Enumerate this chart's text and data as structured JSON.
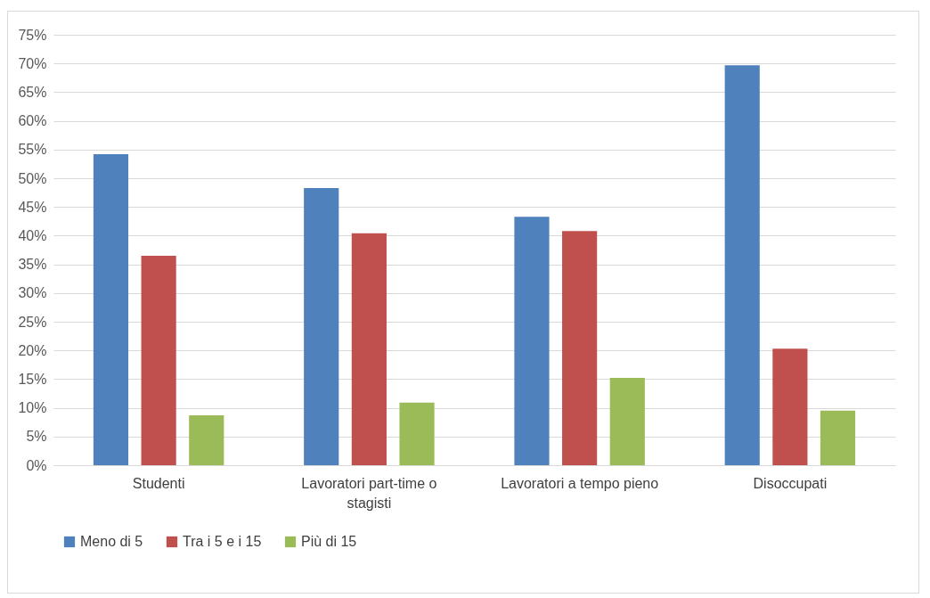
{
  "chart_data": {
    "type": "bar",
    "categories": [
      "Studenti",
      "Lavoratori part-time o stagisti",
      "Lavoratori a tempo pieno",
      "Disoccupati"
    ],
    "series": [
      {
        "name": "Meno di 5",
        "color": "#4f81bd",
        "values": [
          54.2,
          48.3,
          43.3,
          69.7
        ]
      },
      {
        "name": "Tra i 5 e i 15",
        "color": "#c0504d",
        "values": [
          36.5,
          40.4,
          40.8,
          20.3
        ]
      },
      {
        "name": "Più di 15",
        "color": "#9bbb59",
        "values": [
          8.7,
          10.9,
          15.2,
          9.5
        ]
      }
    ],
    "ylim": [
      0,
      75
    ],
    "yticks": [
      {
        "value": 0,
        "label": "0%"
      },
      {
        "value": 5,
        "label": "5%"
      },
      {
        "value": 10,
        "label": "10%"
      },
      {
        "value": 15,
        "label": "15%"
      },
      {
        "value": 20,
        "label": "20%"
      },
      {
        "value": 25,
        "label": "25%"
      },
      {
        "value": 30,
        "label": "30%"
      },
      {
        "value": 35,
        "label": "35%"
      },
      {
        "value": 40,
        "label": "40%"
      },
      {
        "value": 45,
        "label": "45%"
      },
      {
        "value": 50,
        "label": "50%"
      },
      {
        "value": 55,
        "label": "55%"
      },
      {
        "value": 60,
        "label": "60%"
      },
      {
        "value": 65,
        "label": "65%"
      },
      {
        "value": 70,
        "label": "70%"
      },
      {
        "value": 75,
        "label": "75%"
      }
    ],
    "grid": "y",
    "legend": "bottom"
  }
}
